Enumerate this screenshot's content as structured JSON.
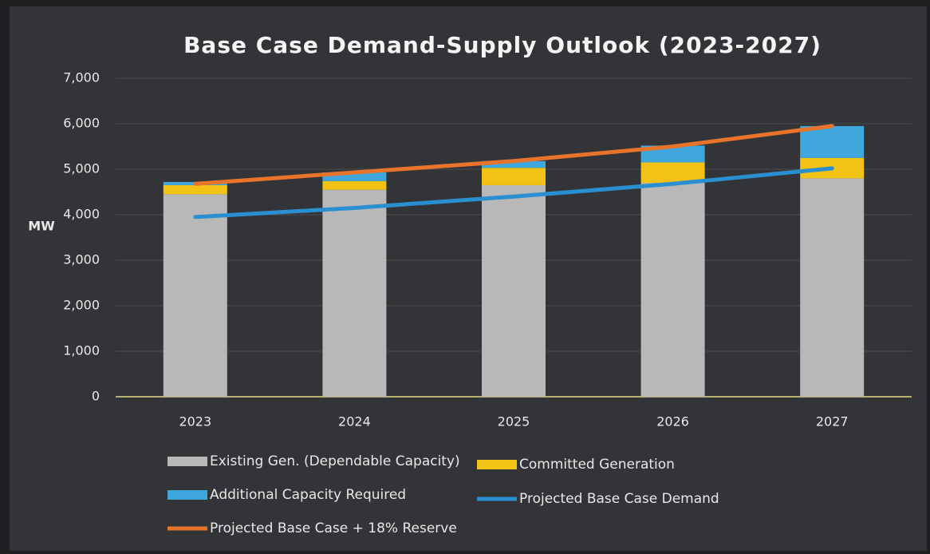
{
  "chart_data": {
    "type": "bar",
    "stacked": true,
    "title": "Base Case Demand-Supply Outlook (2023-2027)",
    "y_label": "MW",
    "categories": [
      "2023",
      "2024",
      "2025",
      "2026",
      "2027"
    ],
    "series": [
      {
        "name": "Existing Gen. (Dependable Capacity)",
        "color": "#b8b8b8",
        "type": "bar",
        "values": [
          4450,
          4550,
          4650,
          4700,
          4800
        ]
      },
      {
        "name": "Committed Generation",
        "color": "#f2c314",
        "type": "bar",
        "values": [
          200,
          190,
          380,
          450,
          450
        ]
      },
      {
        "name": "Additional Capacity Required",
        "color": "#3fa7dc",
        "type": "bar",
        "values": [
          70,
          190,
          150,
          370,
          700
        ]
      },
      {
        "name": "Projected Base Case Demand",
        "color": "#2a8fd0",
        "type": "line",
        "values": [
          3950,
          4150,
          4400,
          4680,
          5020
        ]
      },
      {
        "name": "Projected Base Case + 18% Reserve",
        "color": "#e8732a",
        "type": "line",
        "values": [
          4680,
          4930,
          5180,
          5500,
          5950
        ]
      }
    ],
    "ylim": [
      0,
      7000
    ],
    "yticks": [
      0,
      {
        "value": 1000,
        "label": "1,000"
      },
      {
        "value": 2000,
        "label": "2,000"
      },
      {
        "value": 3000,
        "label": "3,000"
      },
      {
        "value": 4000,
        "label": "4,000"
      },
      {
        "value": 5000,
        "label": "5,000"
      },
      {
        "value": 6000,
        "label": "6,000"
      },
      {
        "value": 7000,
        "label": "7,000"
      }
    ],
    "grid": true
  }
}
